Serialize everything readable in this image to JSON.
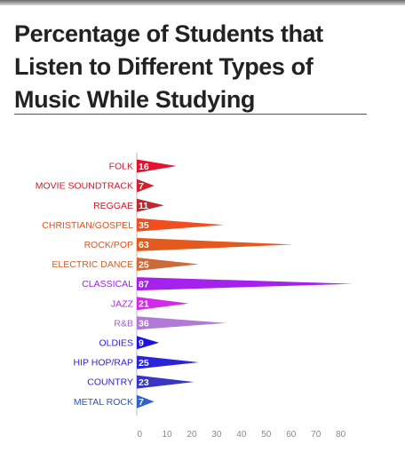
{
  "title": "Percentage of Students that Listen to Different Types of Music While Studying",
  "chart_data": {
    "type": "bar",
    "title": "Percentage of Students that Listen to Different Types of Music While Studying",
    "categories": [
      "FOLK",
      "MOVIE SOUNDTRACK",
      "REGGAE",
      "CHRISTIAN/GOSPEL",
      "ROCK/POP",
      "ELECTRIC DANCE",
      "CLASSICAL",
      "JAZZ",
      "R&B",
      "OLDIES",
      "HIP HOP/RAP",
      "COUNTRY",
      "METAL ROCK"
    ],
    "values": [
      16,
      7,
      11,
      35,
      63,
      25,
      87,
      21,
      36,
      9,
      25,
      23,
      7
    ],
    "colors": [
      "#e8102c",
      "#d81e2a",
      "#c0282e",
      "#f04e1e",
      "#e45a1c",
      "#cc6a38",
      "#a621ee",
      "#d22be8",
      "#b07ad6",
      "#1f10e6",
      "#2a24d8",
      "#3a36c4",
      "#2f64c8"
    ],
    "label_colors": [
      "#c81d2c",
      "#c81d2c",
      "#c81d2c",
      "#e0531f",
      "#e0531f",
      "#d0602a",
      "#9a24e8",
      "#a32fd6",
      "#9b64c2",
      "#2a1cd0",
      "#2a1cd0",
      "#2a1cd0",
      "#2f56b0"
    ],
    "x_ticks": [
      0,
      10,
      20,
      30,
      40,
      50,
      60,
      70,
      80
    ],
    "xlim": [
      0,
      87
    ],
    "orientation": "horizontal",
    "bar_shape": "triangle",
    "grid": false
  }
}
